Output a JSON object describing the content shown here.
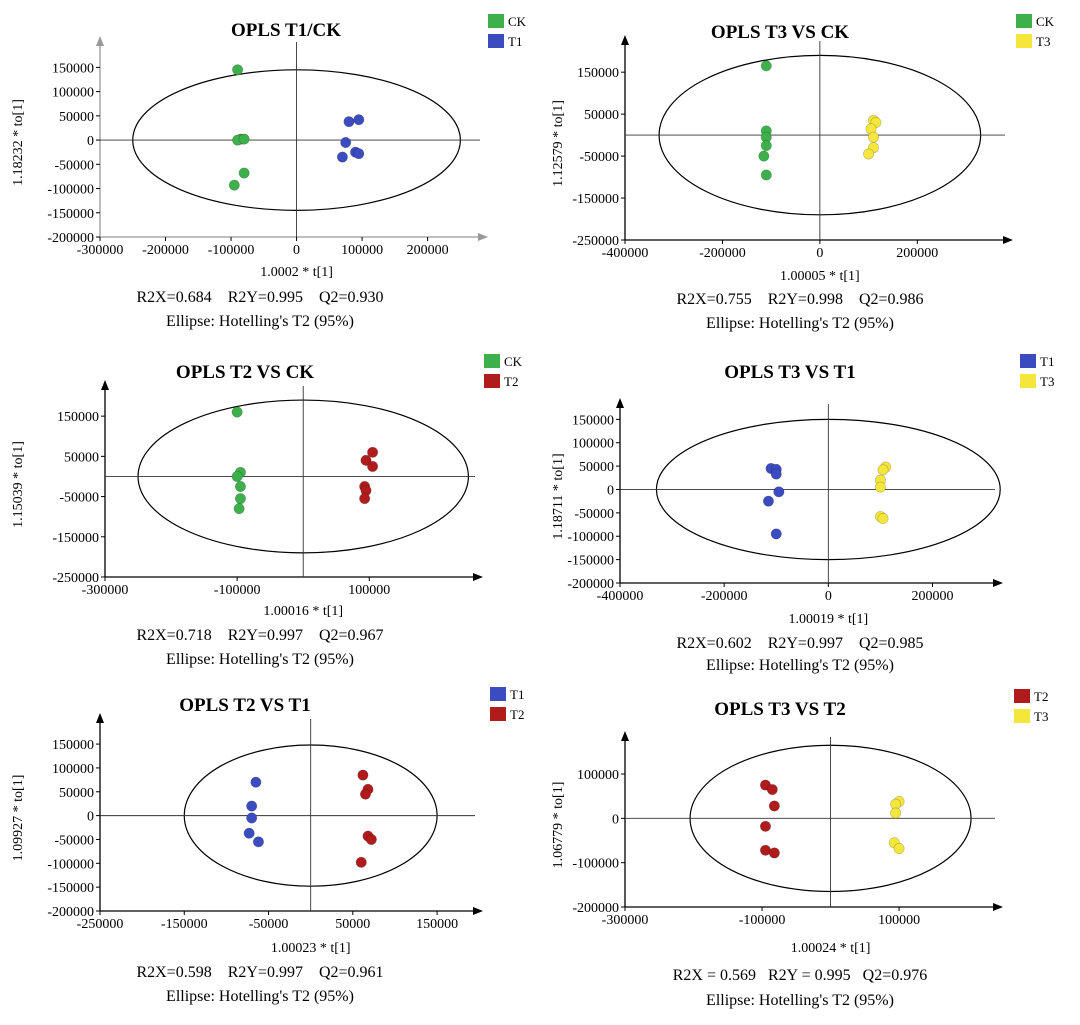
{
  "chart_data": [
    {
      "type": "scatter",
      "title": "OPLS  T1/CK",
      "xlabel": "1.0002 * t[1]",
      "ylabel": "1.18232 * to[1]",
      "xlim": [
        -300000,
        280000
      ],
      "ylim": [
        -200000,
        190000
      ],
      "xticks": [
        -300000,
        -200000,
        -100000,
        0,
        100000,
        200000
      ],
      "xtick_labels": [
        "-300000",
        "-200000",
        "-100000",
        "0",
        "100000",
        "200000"
      ],
      "yticks": [
        -200000,
        -150000,
        -100000,
        -50000,
        0,
        50000,
        100000,
        150000
      ],
      "ytick_labels": [
        "-200000",
        "-150000",
        "-100000",
        "-50000",
        "0",
        "50000",
        "100000",
        "150000"
      ],
      "ellipse": {
        "cx": 0,
        "cy": 0,
        "rx": 250000,
        "ry": 145000
      },
      "stats": "R2X=0.684    R2Y=0.995    Q2=0.930",
      "ellipse_label": "Ellipse: Hotelling's T2 (95%)",
      "series": [
        {
          "name": "CK",
          "color": "#3db04b",
          "points": [
            [
              -90000,
              145000
            ],
            [
              -85000,
              2000
            ],
            [
              -90000,
              0
            ],
            [
              -80000,
              2000
            ],
            [
              -80000,
              -68000
            ],
            [
              -95000,
              -93000
            ]
          ]
        },
        {
          "name": "T1",
          "color": "#3b4cc0",
          "points": [
            [
              80000,
              38000
            ],
            [
              95000,
              42000
            ],
            [
              75000,
              -5000
            ],
            [
              90000,
              -25000
            ],
            [
              95000,
              -28000
            ],
            [
              70000,
              -35000
            ]
          ]
        }
      ]
    },
    {
      "type": "scatter",
      "title": "OPLS T3 VS CK",
      "xlabel": "1.00005 * t[1]",
      "ylabel": "1.12579 * to[1]",
      "xlim": [
        -400000,
        380000
      ],
      "ylim": [
        -250000,
        210000
      ],
      "xticks": [
        -400000,
        -200000,
        0,
        200000
      ],
      "xtick_labels": [
        "-400000",
        "-200000",
        "0",
        "200000"
      ],
      "yticks": [
        -250000,
        -150000,
        -50000,
        50000,
        150000
      ],
      "ytick_labels": [
        "-250000",
        "-150000",
        "-50000",
        "50000",
        "150000"
      ],
      "ellipse": {
        "cx": 0,
        "cy": 0,
        "rx": 330000,
        "ry": 190000
      },
      "stats": "R2X=0.755    R2Y=0.998    Q2=0.986",
      "ellipse_label": "Ellipse: Hotelling's T2 (95%)",
      "series": [
        {
          "name": "CK",
          "color": "#3db04b",
          "points": [
            [
              -110000,
              165000
            ],
            [
              -110000,
              10000
            ],
            [
              -110000,
              -5000
            ],
            [
              -110000,
              -25000
            ],
            [
              -115000,
              -50000
            ],
            [
              -110000,
              -95000
            ]
          ]
        },
        {
          "name": "T3",
          "color": "#f5e63c",
          "points": [
            [
              110000,
              35000
            ],
            [
              115000,
              30000
            ],
            [
              105000,
              15000
            ],
            [
              110000,
              -5000
            ],
            [
              110000,
              -30000
            ],
            [
              100000,
              -45000
            ]
          ]
        }
      ]
    },
    {
      "type": "scatter",
      "title": "OPLS T2 VS CK",
      "xlabel": "1.00016 * t[1]",
      "ylabel": "1.15039 * to[1]",
      "xlim": [
        -300000,
        260000
      ],
      "ylim": [
        -250000,
        210000
      ],
      "xticks": [
        -300000,
        -100000,
        100000
      ],
      "xtick_labels": [
        "-300000",
        "-100000",
        "100000"
      ],
      "yticks": [
        -250000,
        -150000,
        -50000,
        50000,
        150000
      ],
      "ytick_labels": [
        "-250000",
        "-150000",
        "-50000",
        "50000",
        "150000"
      ],
      "ellipse": {
        "cx": 0,
        "cy": 0,
        "rx": 250000,
        "ry": 190000
      },
      "stats": "R2X=0.718    R2Y=0.997    Q2=0.967",
      "ellipse_label": "Ellipse: Hotelling's T2 (95%)",
      "series": [
        {
          "name": "CK",
          "color": "#3db04b",
          "points": [
            [
              -100000,
              160000
            ],
            [
              -95000,
              10000
            ],
            [
              -100000,
              0
            ],
            [
              -95000,
              -25000
            ],
            [
              -95000,
              -55000
            ],
            [
              -97000,
              -80000
            ]
          ]
        },
        {
          "name": "T2",
          "color": "#b01c1c",
          "points": [
            [
              105000,
              60000
            ],
            [
              95000,
              40000
            ],
            [
              105000,
              25000
            ],
            [
              93000,
              -25000
            ],
            [
              95000,
              -35000
            ],
            [
              93000,
              -55000
            ]
          ]
        }
      ]
    },
    {
      "type": "scatter",
      "title": "OPLS T3 VS T1",
      "xlabel": "1.00019 * t[1]",
      "ylabel": "1.18711 * to[1]",
      "xlim": [
        -400000,
        320000
      ],
      "ylim": [
        -200000,
        170000
      ],
      "xticks": [
        -400000,
        -200000,
        0,
        200000
      ],
      "xtick_labels": [
        "-400000",
        "-200000",
        "0",
        "200000"
      ],
      "yticks": [
        -200000,
        -150000,
        -100000,
        -50000,
        0,
        50000,
        100000,
        150000
      ],
      "ytick_labels": [
        "-200000",
        "-150000",
        "-100000",
        "-50000",
        "0",
        "50000",
        "100000",
        "150000"
      ],
      "ellipse": {
        "cx": 0,
        "cy": 0,
        "rx": 330000,
        "ry": 150000
      },
      "stats": "R2X=0.602    R2Y=0.997    Q2=0.985",
      "ellipse_label": "Ellipse: Hotelling's T2 (95%)",
      "series": [
        {
          "name": "T1",
          "color": "#3b4cc0",
          "points": [
            [
              -110000,
              45000
            ],
            [
              -100000,
              43000
            ],
            [
              -100000,
              33000
            ],
            [
              -95000,
              -5000
            ],
            [
              -115000,
              -25000
            ],
            [
              -100000,
              -95000
            ]
          ]
        },
        {
          "name": "T3",
          "color": "#f5e63c",
          "points": [
            [
              110000,
              48000
            ],
            [
              105000,
              42000
            ],
            [
              100000,
              20000
            ],
            [
              100000,
              5000
            ],
            [
              100000,
              -58000
            ],
            [
              105000,
              -62000
            ]
          ]
        }
      ]
    },
    {
      "type": "scatter",
      "title": "OPLS T2 VS T1",
      "xlabel": "1.00023 * t[1]",
      "ylabel": "1.09927 * to[1]",
      "xlim": [
        -250000,
        195000
      ],
      "ylim": [
        -200000,
        190000
      ],
      "xticks": [
        -250000,
        -150000,
        -50000,
        50000,
        150000
      ],
      "xtick_labels": [
        "-250000",
        "-150000",
        "-50000",
        "50000",
        "150000"
      ],
      "yticks": [
        -200000,
        -150000,
        -100000,
        -50000,
        0,
        50000,
        100000,
        150000
      ],
      "ytick_labels": [
        "-200000",
        "-150000",
        "-100000",
        "-50000",
        "0",
        "50000",
        "100000",
        "150000"
      ],
      "ellipse": {
        "cx": 0,
        "cy": 0,
        "rx": 150000,
        "ry": 148000
      },
      "stats": "R2X=0.598    R2Y=0.997    Q2=0.961",
      "ellipse_label": "Ellipse: Hotelling's T2 (95%)",
      "series": [
        {
          "name": "T1",
          "color": "#3b4cc0",
          "points": [
            [
              -65000,
              70000
            ],
            [
              -70000,
              20000
            ],
            [
              -70000,
              -5000
            ],
            [
              -73000,
              -37000
            ],
            [
              -62000,
              -55000
            ]
          ]
        },
        {
          "name": "T2",
          "color": "#b01c1c",
          "points": [
            [
              62000,
              85000
            ],
            [
              68000,
              55000
            ],
            [
              65000,
              45000
            ],
            [
              68000,
              -43000
            ],
            [
              72000,
              -50000
            ],
            [
              60000,
              -98000
            ]
          ]
        }
      ]
    },
    {
      "type": "scatter",
      "title": "OPLS T3 VS T2",
      "xlabel": "1.00024 * t[1]",
      "ylabel": "1.06779 * to[1]",
      "xlim": [
        -300000,
        240000
      ],
      "ylim": [
        -200000,
        170000
      ],
      "xticks": [
        -300000,
        -100000,
        100000
      ],
      "xtick_labels": [
        "-300000",
        "-100000",
        "100000"
      ],
      "yticks": [
        -200000,
        -100000,
        0,
        100000
      ],
      "ytick_labels": [
        "-200000",
        "-100000",
        "0",
        "100000"
      ],
      "ellipse": {
        "cx": 0,
        "cy": 0,
        "rx": 205000,
        "ry": 165000
      },
      "stats": "R2X = 0.569   R2Y = 0.995   Q2=0.976",
      "ellipse_label": "Ellipse: Hotelling's T2 (95%)",
      "series": [
        {
          "name": "T2",
          "color": "#b01c1c",
          "points": [
            [
              -95000,
              75000
            ],
            [
              -85000,
              65000
            ],
            [
              -82000,
              28000
            ],
            [
              -95000,
              -18000
            ],
            [
              -95000,
              -72000
            ],
            [
              -82000,
              -78000
            ]
          ]
        },
        {
          "name": "T3",
          "color": "#f5e63c",
          "points": [
            [
              100000,
              38000
            ],
            [
              95000,
              32000
            ],
            [
              95000,
              12000
            ],
            [
              93000,
              -55000
            ],
            [
              100000,
              -68000
            ]
          ]
        }
      ]
    }
  ]
}
